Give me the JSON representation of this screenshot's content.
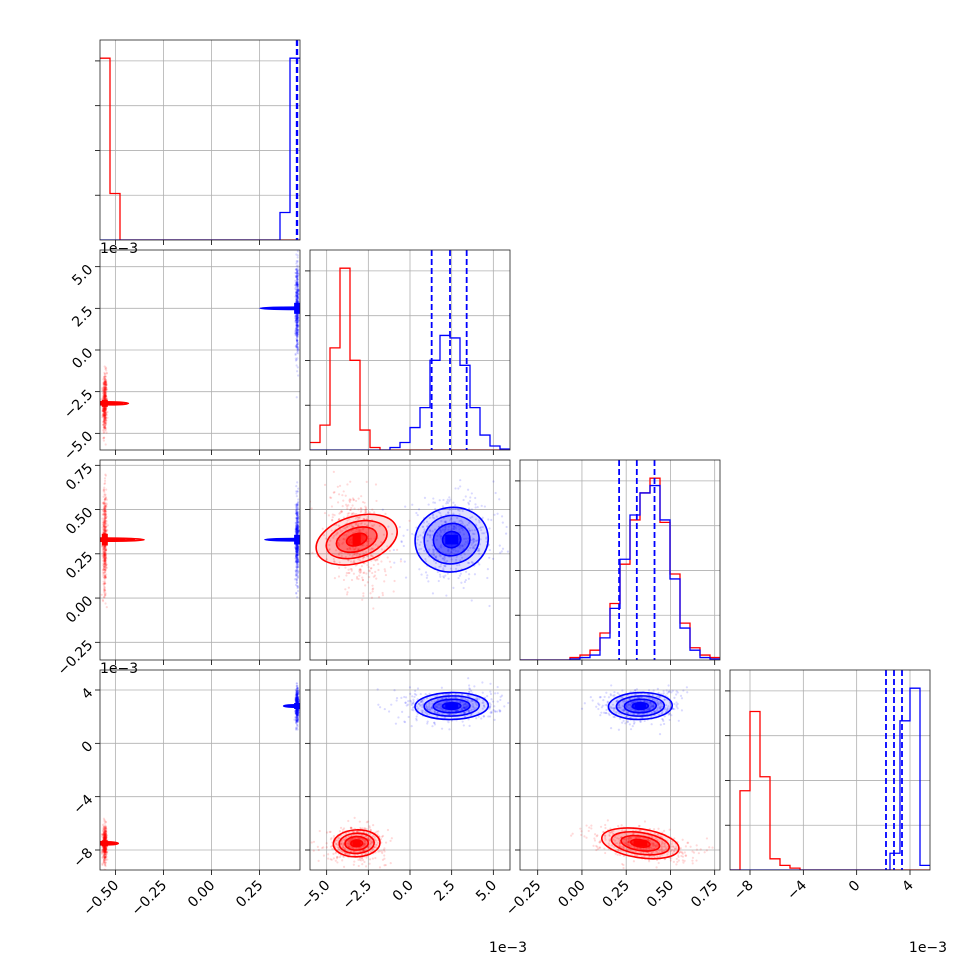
{
  "chart_data": {
    "type": "corner",
    "grid": true,
    "colors": {
      "red": "#ff0000",
      "blue": "#0000ff"
    },
    "series": [
      {
        "color": "#ff0000",
        "means": [
          -0.555,
          -0.0032,
          0.33,
          -0.0075
        ],
        "sds": [
          0.004,
          0.0007,
          0.11,
          0.0005
        ]
      },
      {
        "color": "#0000ff",
        "means": [
          0.445,
          0.0025,
          0.33,
          0.0028
        ],
        "sds": [
          0.003,
          0.0011,
          0.09,
          0.0005
        ],
        "quantiles": [
          [
            0.443,
            0.4445,
            0.446
          ],
          [
            0.0013,
            0.0024,
            0.0034
          ],
          [
            0.21,
            0.31,
            0.41
          ],
          [
            0.0022,
            0.0028,
            0.0034
          ]
        ]
      }
    ],
    "axes": [
      {
        "range": [
          -0.58,
          0.46
        ],
        "ticks": [
          -0.5,
          -0.25,
          0.0,
          0.25
        ],
        "tick_labels": [
          "−0.50",
          "−0.25",
          "0.00",
          "0.25"
        ],
        "offset": ""
      },
      {
        "range": [
          -0.006,
          0.006
        ],
        "ticks": [
          -0.005,
          -0.0025,
          0.0,
          0.0025,
          0.005
        ],
        "tick_labels": [
          "−5.0",
          "−2.5",
          "0.0",
          "2.5",
          "5.0"
        ],
        "offset": "1e−3"
      },
      {
        "range": [
          -0.35,
          0.78
        ],
        "ticks": [
          -0.25,
          0.0,
          0.25,
          0.5,
          0.75
        ],
        "tick_labels": [
          "−0.25",
          "0.00",
          "0.25",
          "0.50",
          "0.75"
        ],
        "offset": ""
      },
      {
        "range": [
          -0.0095,
          0.0055
        ],
        "ticks": [
          -0.008,
          -0.004,
          0.0,
          0.004
        ],
        "tick_labels": [
          "−8",
          "−4",
          "0",
          "4"
        ],
        "offset": "1e−3"
      }
    ],
    "histograms": [
      {
        "red": [
          4.3,
          1.1,
          0,
          0,
          0,
          0,
          0,
          0,
          0,
          0,
          0,
          0,
          0,
          0,
          0,
          0,
          0,
          0,
          0,
          0
        ],
        "blue": [
          0,
          0,
          0,
          0,
          0,
          0,
          0,
          0,
          0,
          0,
          0,
          0,
          0,
          0,
          0,
          0,
          0,
          0,
          0.65,
          4.3
        ]
      },
      {
        "red": [
          0.15,
          0.5,
          2.05,
          3.65,
          1.8,
          0.4,
          0.05,
          0,
          0,
          0,
          0,
          0,
          0,
          0,
          0,
          0,
          0,
          0,
          0,
          0
        ],
        "blue": [
          0,
          0,
          0,
          0,
          0,
          0,
          0,
          0,
          0.05,
          0.15,
          0.45,
          0.85,
          1.8,
          2.3,
          2.25,
          1.7,
          0.85,
          0.3,
          0.08,
          0.02
        ]
      },
      {
        "red": [
          0,
          0,
          0,
          0,
          0,
          0.05,
          0.1,
          0.2,
          0.55,
          1.15,
          1.95,
          2.85,
          3.4,
          3.7,
          2.8,
          1.75,
          0.75,
          0.25,
          0.1,
          0.05
        ],
        "blue": [
          0,
          0,
          0,
          0,
          0,
          0.02,
          0.05,
          0.1,
          0.45,
          1.05,
          2.05,
          2.95,
          3.4,
          3.55,
          2.85,
          1.65,
          0.65,
          0.2,
          0.05,
          0.02
        ]
      },
      {
        "red": [
          0,
          0.85,
          1.7,
          1.0,
          0.12,
          0.05,
          0.02,
          0,
          0,
          0,
          0,
          0,
          0,
          0,
          0,
          0,
          0,
          0,
          0,
          0
        ],
        "blue": [
          0,
          0,
          0,
          0,
          0,
          0,
          0,
          0,
          0,
          0,
          0,
          0,
          0,
          0,
          0,
          0,
          0.18,
          1.6,
          1.95,
          0.05
        ]
      }
    ]
  }
}
